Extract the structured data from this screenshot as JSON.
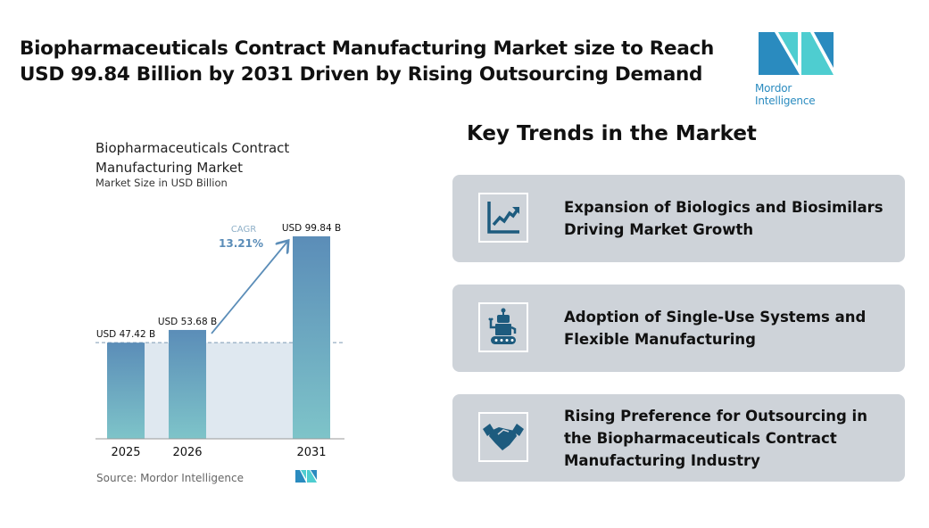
{
  "header": {
    "title": "Biopharmaceuticals Contract Manufacturing Market size to Reach USD 99.84 Billion by 2031 Driven by Rising Outsourcing Demand",
    "logo_text": "Mordor Intelligence"
  },
  "chart_data": {
    "type": "bar",
    "title": "Biopharmaceuticals Contract Manufacturing Market",
    "subtitle": "Market Size in USD Billion",
    "categories": [
      "2025",
      "2026",
      "2031"
    ],
    "values": [
      47.42,
      53.68,
      99.84
    ],
    "data_labels": [
      "USD 47.42 B",
      "USD 53.68 B",
      "USD 99.84 B"
    ],
    "annotation": {
      "label": "CAGR",
      "value": "13.21%"
    },
    "source": "Source: Mordor Intelligence",
    "colors": {
      "bar_top": "#5b8db8",
      "bar_bottom": "#7ec4c9",
      "annotation": "#5b8db8"
    }
  },
  "trends": {
    "heading": "Key Trends in the Market",
    "items": [
      {
        "icon": "growth-chart-icon",
        "text": "Expansion of Biologics and Biosimilars Driving Market Growth"
      },
      {
        "icon": "robot-icon",
        "text": "Adoption of Single-Use Systems and Flexible Manufacturing"
      },
      {
        "icon": "handshake-icon",
        "text": "Rising Preference for Outsourcing in the Biopharmaceuticals Contract Manufacturing Industry"
      }
    ]
  }
}
